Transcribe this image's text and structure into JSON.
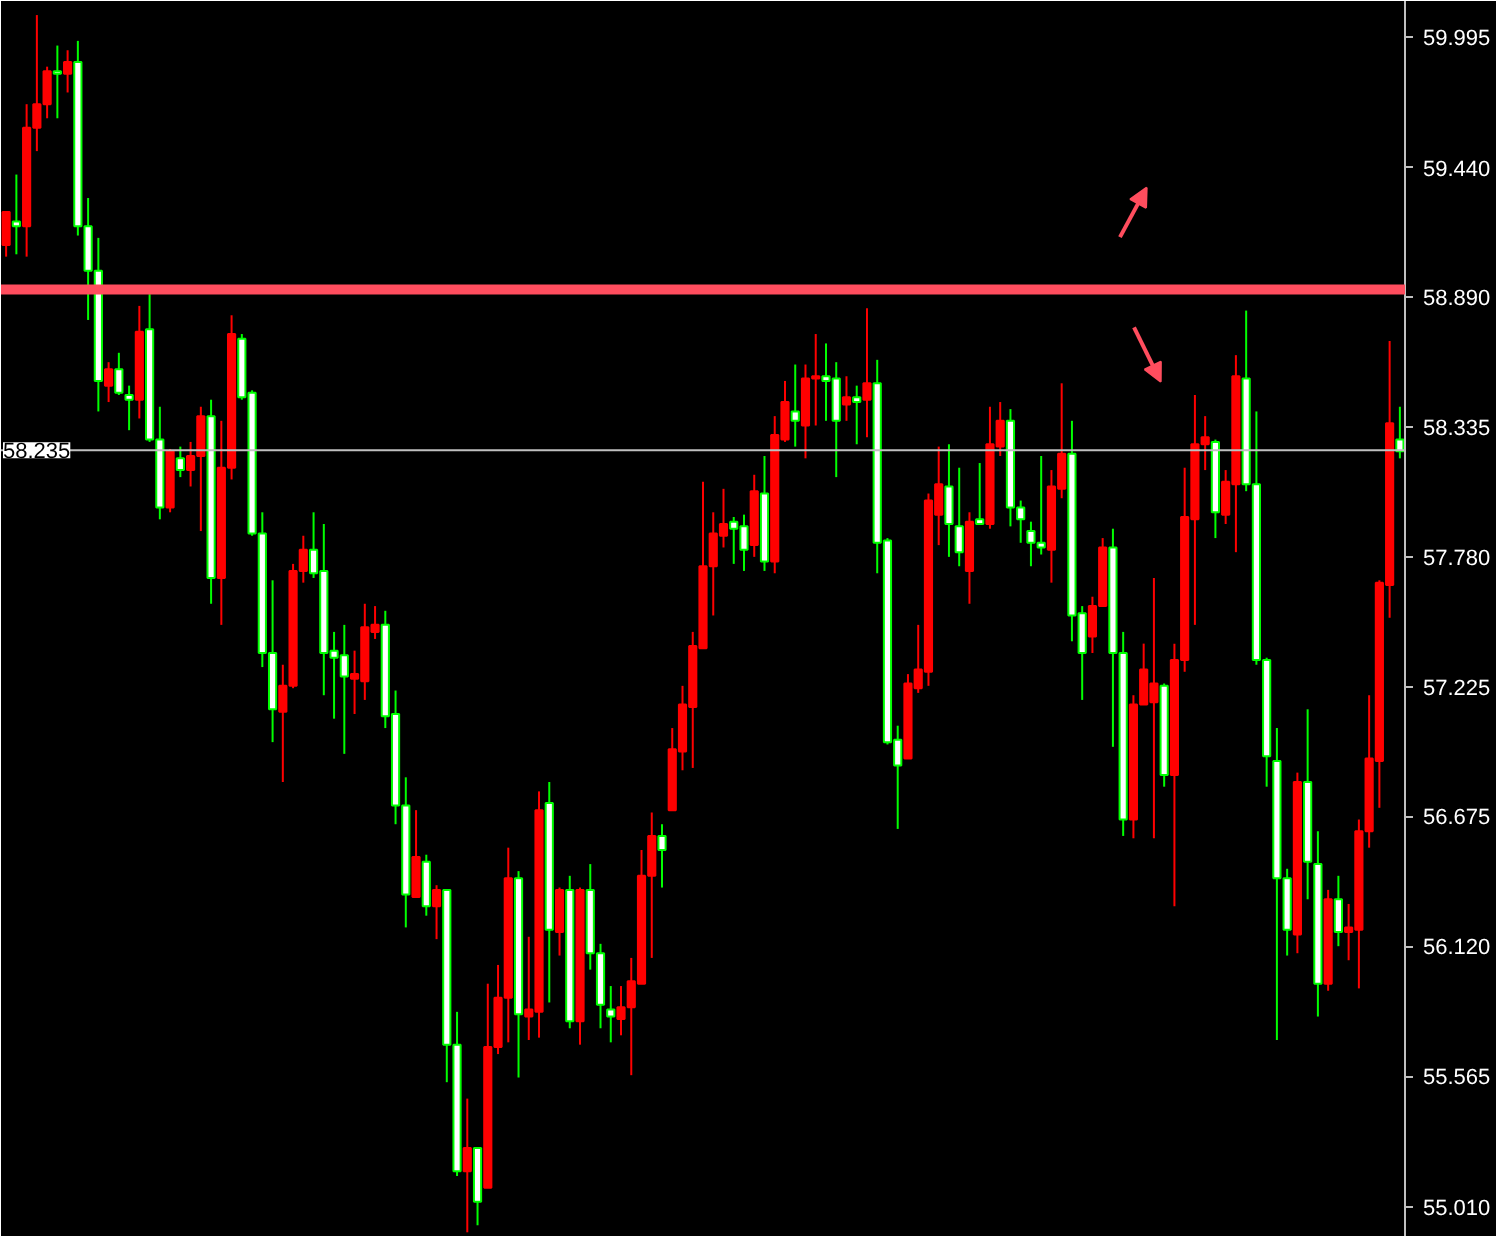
{
  "chart_data": {
    "type": "candlestick",
    "categories": [
      null,
      null,
      null,
      null,
      null,
      null,
      null,
      null,
      null,
      null,
      null,
      null,
      null,
      null,
      null,
      null,
      null,
      null,
      null,
      null,
      null,
      null,
      null,
      null,
      null,
      null,
      null,
      null,
      null,
      null,
      null,
      null,
      null,
      null,
      null,
      null,
      null,
      null,
      null,
      null,
      null,
      null,
      null,
      null,
      null,
      null,
      null,
      null,
      null,
      null,
      null,
      null,
      null,
      null,
      null,
      null,
      null,
      null,
      null,
      null,
      null,
      null,
      null,
      null,
      null,
      null,
      null,
      null,
      null,
      null,
      null,
      null,
      null,
      null,
      null,
      null,
      null,
      null,
      null,
      null,
      null,
      null,
      null,
      null,
      null,
      null,
      null,
      null,
      null,
      null,
      null,
      null,
      null,
      null,
      null,
      null,
      null,
      null,
      null,
      null,
      null,
      null,
      null,
      null,
      null,
      null,
      null,
      null,
      null,
      null,
      null,
      null,
      null,
      null,
      null,
      null,
      null,
      null,
      null,
      null,
      null,
      null,
      null,
      null,
      null,
      null,
      null,
      null,
      null,
      null,
      null,
      null,
      null,
      null,
      null,
      null,
      null
    ],
    "ohlc": [
      [
        59.11,
        59.25,
        59.06,
        59.25
      ],
      [
        59.21,
        59.41,
        59.07,
        59.19
      ],
      [
        59.19,
        59.71,
        59.06,
        59.61
      ],
      [
        59.61,
        60.09,
        59.51,
        59.71
      ],
      [
        59.71,
        59.87,
        59.65,
        59.85
      ],
      [
        59.85,
        59.96,
        59.65,
        59.84
      ],
      [
        59.84,
        59.94,
        59.76,
        59.89
      ],
      [
        59.89,
        59.98,
        59.15,
        59.19
      ],
      [
        59.19,
        59.31,
        58.79,
        59.0
      ],
      [
        59.0,
        59.14,
        58.4,
        58.53
      ],
      [
        58.51,
        58.61,
        58.44,
        58.58
      ],
      [
        58.58,
        58.65,
        58.47,
        58.48
      ],
      [
        58.47,
        58.51,
        58.32,
        58.45
      ],
      [
        58.45,
        58.85,
        58.37,
        58.74
      ],
      [
        58.75,
        58.9,
        58.27,
        58.28
      ],
      [
        58.28,
        58.42,
        57.94,
        57.99
      ],
      [
        57.99,
        58.24,
        57.97,
        58.23
      ],
      [
        58.2,
        58.25,
        58.12,
        58.15
      ],
      [
        58.15,
        58.27,
        58.08,
        58.21
      ],
      [
        58.21,
        58.42,
        57.89,
        58.38
      ],
      [
        58.38,
        58.45,
        57.58,
        57.69
      ],
      [
        57.69,
        58.36,
        57.49,
        58.16
      ],
      [
        58.16,
        58.81,
        58.11,
        58.73
      ],
      [
        58.71,
        58.73,
        58.45,
        58.46
      ],
      [
        58.48,
        58.49,
        57.87,
        57.88
      ],
      [
        57.88,
        57.97,
        57.31,
        57.37
      ],
      [
        57.37,
        57.68,
        56.99,
        57.13
      ],
      [
        57.12,
        57.32,
        56.82,
        57.23
      ],
      [
        57.23,
        57.75,
        57.22,
        57.72
      ],
      [
        57.72,
        57.87,
        57.67,
        57.81
      ],
      [
        57.81,
        57.97,
        57.69,
        57.71
      ],
      [
        57.72,
        57.92,
        57.19,
        57.37
      ],
      [
        57.38,
        57.46,
        57.09,
        57.35
      ],
      [
        57.36,
        57.49,
        56.94,
        57.27
      ],
      [
        57.26,
        57.38,
        57.11,
        57.28
      ],
      [
        57.25,
        57.58,
        57.17,
        57.48
      ],
      [
        57.46,
        57.57,
        57.43,
        57.49
      ],
      [
        57.49,
        57.55,
        57.05,
        57.1
      ],
      [
        57.11,
        57.21,
        56.64,
        56.72
      ],
      [
        56.72,
        56.84,
        56.2,
        56.34
      ],
      [
        56.33,
        56.7,
        56.33,
        56.5
      ],
      [
        56.48,
        56.51,
        56.25,
        56.29
      ],
      [
        56.29,
        56.38,
        56.15,
        56.36
      ],
      [
        56.36,
        56.36,
        55.54,
        55.7
      ],
      [
        55.7,
        55.84,
        55.14,
        55.16
      ],
      [
        55.16,
        55.47,
        54.9,
        55.26
      ],
      [
        55.26,
        55.26,
        54.93,
        55.03
      ],
      [
        55.09,
        55.96,
        55.09,
        55.69
      ],
      [
        55.69,
        56.04,
        55.66,
        55.9
      ],
      [
        55.9,
        56.54,
        55.71,
        56.41
      ],
      [
        56.41,
        56.44,
        55.56,
        55.83
      ],
      [
        55.82,
        56.16,
        55.72,
        55.85
      ],
      [
        55.84,
        56.78,
        55.73,
        56.7
      ],
      [
        56.73,
        56.82,
        55.88,
        56.19
      ],
      [
        56.18,
        56.37,
        56.08,
        56.36
      ],
      [
        56.36,
        56.42,
        55.77,
        55.8
      ],
      [
        55.8,
        56.37,
        55.7,
        56.36
      ],
      [
        56.36,
        56.47,
        56.02,
        56.09
      ],
      [
        56.09,
        56.13,
        55.77,
        55.87
      ],
      [
        55.85,
        55.95,
        55.71,
        55.82
      ],
      [
        55.81,
        55.95,
        55.74,
        55.86
      ],
      [
        55.86,
        56.07,
        55.57,
        55.97
      ],
      [
        55.96,
        56.53,
        55.96,
        56.42
      ],
      [
        56.42,
        56.69,
        56.07,
        56.59
      ],
      [
        56.59,
        56.64,
        56.37,
        56.53
      ],
      [
        56.7,
        57.05,
        56.7,
        56.96
      ],
      [
        56.95,
        57.23,
        56.87,
        57.15
      ],
      [
        57.14,
        57.46,
        56.88,
        57.4
      ],
      [
        57.39,
        58.1,
        57.39,
        57.74
      ],
      [
        57.74,
        57.97,
        57.53,
        57.88
      ],
      [
        57.87,
        58.07,
        57.82,
        57.92
      ],
      [
        57.93,
        57.95,
        57.75,
        57.9
      ],
      [
        57.91,
        57.96,
        57.72,
        57.81
      ],
      [
        57.83,
        58.13,
        57.78,
        58.06
      ],
      [
        58.05,
        58.21,
        57.72,
        57.76
      ],
      [
        57.76,
        58.38,
        57.71,
        58.3
      ],
      [
        58.28,
        58.53,
        58.27,
        58.44
      ],
      [
        58.4,
        58.6,
        58.25,
        58.36
      ],
      [
        58.34,
        58.6,
        58.2,
        58.54
      ],
      [
        58.54,
        58.73,
        58.34,
        58.55
      ],
      [
        58.55,
        58.69,
        58.36,
        58.53
      ],
      [
        58.54,
        58.61,
        58.12,
        58.36
      ],
      [
        58.43,
        58.55,
        58.36,
        58.46
      ],
      [
        58.46,
        58.51,
        58.26,
        58.44
      ],
      [
        58.45,
        58.84,
        58.29,
        58.52
      ],
      [
        58.52,
        58.62,
        57.71,
        57.84
      ],
      [
        57.85,
        57.86,
        56.98,
        56.99
      ],
      [
        57.0,
        57.06,
        56.62,
        56.89
      ],
      [
        56.92,
        57.28,
        56.92,
        57.24
      ],
      [
        57.22,
        57.49,
        57.2,
        57.3
      ],
      [
        57.29,
        58.05,
        57.23,
        58.02
      ],
      [
        57.96,
        58.25,
        57.83,
        58.09
      ],
      [
        58.08,
        58.26,
        57.78,
        57.92
      ],
      [
        57.91,
        58.16,
        57.74,
        57.8
      ],
      [
        57.72,
        57.97,
        57.58,
        57.93
      ],
      [
        57.94,
        58.18,
        57.92,
        57.92
      ],
      [
        57.92,
        58.42,
        57.9,
        58.26
      ],
      [
        58.25,
        58.44,
        58.21,
        58.36
      ],
      [
        58.36,
        58.41,
        57.91,
        57.99
      ],
      [
        57.99,
        58.02,
        57.84,
        57.94
      ],
      [
        57.89,
        57.93,
        57.74,
        57.84
      ],
      [
        57.84,
        58.21,
        57.79,
        57.82
      ],
      [
        57.81,
        58.15,
        57.67,
        58.08
      ],
      [
        58.07,
        58.52,
        58.03,
        58.22
      ],
      [
        58.22,
        58.36,
        57.42,
        57.53
      ],
      [
        57.54,
        57.57,
        57.17,
        57.37
      ],
      [
        57.44,
        57.61,
        57.37,
        57.57
      ],
      [
        57.57,
        57.86,
        57.57,
        57.82
      ],
      [
        57.82,
        57.9,
        56.97,
        57.37
      ],
      [
        57.37,
        57.46,
        56.59,
        56.66
      ],
      [
        56.66,
        57.19,
        56.58,
        57.15
      ],
      [
        57.15,
        57.41,
        57.15,
        57.3
      ],
      [
        57.16,
        57.69,
        56.58,
        57.24
      ],
      [
        57.23,
        57.24,
        56.8,
        56.85
      ],
      [
        56.85,
        57.41,
        56.29,
        57.34
      ],
      [
        57.34,
        58.16,
        57.29,
        57.95
      ],
      [
        57.94,
        58.47,
        57.49,
        58.26
      ],
      [
        58.26,
        58.38,
        58.15,
        58.29
      ],
      [
        58.27,
        58.28,
        57.86,
        57.97
      ],
      [
        57.96,
        58.15,
        57.92,
        58.1
      ],
      [
        58.09,
        58.64,
        57.8,
        58.55
      ],
      [
        58.54,
        58.83,
        58.06,
        58.09
      ],
      [
        58.09,
        58.4,
        57.32,
        57.34
      ],
      [
        57.34,
        57.35,
        56.8,
        56.93
      ],
      [
        56.91,
        57.05,
        55.72,
        56.41
      ],
      [
        56.41,
        56.45,
        56.08,
        56.19
      ],
      [
        56.17,
        56.86,
        56.09,
        56.82
      ],
      [
        56.82,
        57.13,
        56.32,
        56.48
      ],
      [
        56.47,
        56.61,
        55.82,
        55.96
      ],
      [
        55.96,
        56.36,
        55.93,
        56.32
      ],
      [
        56.32,
        56.42,
        56.12,
        56.18
      ],
      [
        56.18,
        56.3,
        56.06,
        56.2
      ],
      [
        56.19,
        56.66,
        55.94,
        56.61
      ],
      [
        56.61,
        57.19,
        56.54,
        56.92
      ],
      [
        56.91,
        57.68,
        56.71,
        57.67
      ],
      [
        57.66,
        58.7,
        57.52,
        58.35
      ],
      [
        58.28,
        58.42,
        58.2,
        58.23
      ]
    ],
    "colors": [
      "#ff0000",
      "#ffffff",
      "#ff0000",
      "#ff0000",
      "#ff0000",
      "#ffffff",
      "#ff0000",
      "#ffffff",
      "#ffffff",
      "#ffffff",
      "#ff0000",
      "#ffffff",
      "#ffffff",
      "#ff0000",
      "#ffffff",
      "#ffffff",
      "#ff0000",
      "#ffffff",
      "#ff0000",
      "#ff0000",
      "#ffffff",
      "#ff0000",
      "#ff0000",
      "#ffffff",
      "#ffffff",
      "#ffffff",
      "#ffffff",
      "#ff0000",
      "#ff0000",
      "#ff0000",
      "#ffffff",
      "#ffffff",
      "#ffffff",
      "#ffffff",
      "#ff0000",
      "#ff0000",
      "#ff0000",
      "#ffffff",
      "#ffffff",
      "#ffffff",
      "#ff0000",
      "#ffffff",
      "#ff0000",
      "#ffffff",
      "#ffffff",
      "#ff0000",
      "#ffffff",
      "#ff0000",
      "#ff0000",
      "#ff0000",
      "#ffffff",
      "#ff0000",
      "#ff0000",
      "#ffffff",
      "#ff0000",
      "#ffffff",
      "#ff0000",
      "#ffffff",
      "#ffffff",
      "#ffffff",
      "#ff0000",
      "#ff0000",
      "#ff0000",
      "#ff0000",
      "#ffffff",
      "#ff0000",
      "#ff0000",
      "#ff0000",
      "#ff0000",
      "#ff0000",
      "#ff0000",
      "#ffffff",
      "#ffffff",
      "#ff0000",
      "#ffffff",
      "#ff0000",
      "#ff0000",
      "#ffffff",
      "#ff0000",
      "#ff0000",
      "#ffffff",
      "#ffffff",
      "#ff0000",
      "#ffffff",
      "#ff0000",
      "#ffffff",
      "#ffffff",
      "#ffffff",
      "#ff0000",
      "#ff0000",
      "#ff0000",
      "#ff0000",
      "#ffffff",
      "#ffffff",
      "#ff0000",
      "#ffffff",
      "#ff0000",
      "#ff0000",
      "#ffffff",
      "#ffffff",
      "#ffffff",
      "#ffffff",
      "#ff0000",
      "#ff0000",
      "#ffffff",
      "#ffffff",
      "#ff0000",
      "#ff0000",
      "#ffffff",
      "#ffffff",
      "#ff0000",
      "#ff0000",
      "#ff0000",
      "#ffffff",
      "#ff0000",
      "#ff0000",
      "#ff0000",
      "#ff0000",
      "#ffffff",
      "#ff0000",
      "#ff0000",
      "#ffffff",
      "#ffffff",
      "#ffffff",
      "#ffffff",
      "#ffffff",
      "#ff0000",
      "#ffffff",
      "#ffffff",
      "#ff0000",
      "#ffffff",
      "#ff0000",
      "#ff0000",
      "#ff0000",
      "#ff0000",
      "#ff0000",
      "#ffffff"
    ],
    "ylim": [
      54.88,
      60.15
    ],
    "yticks": [
      59.995,
      {
        "value": 59.44,
        "label": "59.440"
      },
      {
        "value": 58.89,
        "label": "58.890"
      },
      58.335,
      {
        "value": 57.78,
        "label": "57.780"
      },
      57.225,
      56.675,
      {
        "value": 56.12,
        "label": "56.120"
      },
      55.565,
      {
        "value": 55.01,
        "label": "55.010"
      }
    ],
    "tick_labels": "y",
    "ref_lines": [
      {
        "axis": "y",
        "value": 58.235,
        "label": "58.235",
        "color": "#c0c0c0"
      },
      {
        "axis": "y",
        "value": 58.92,
        "color": "#ff4d5e"
      }
    ]
  }
}
